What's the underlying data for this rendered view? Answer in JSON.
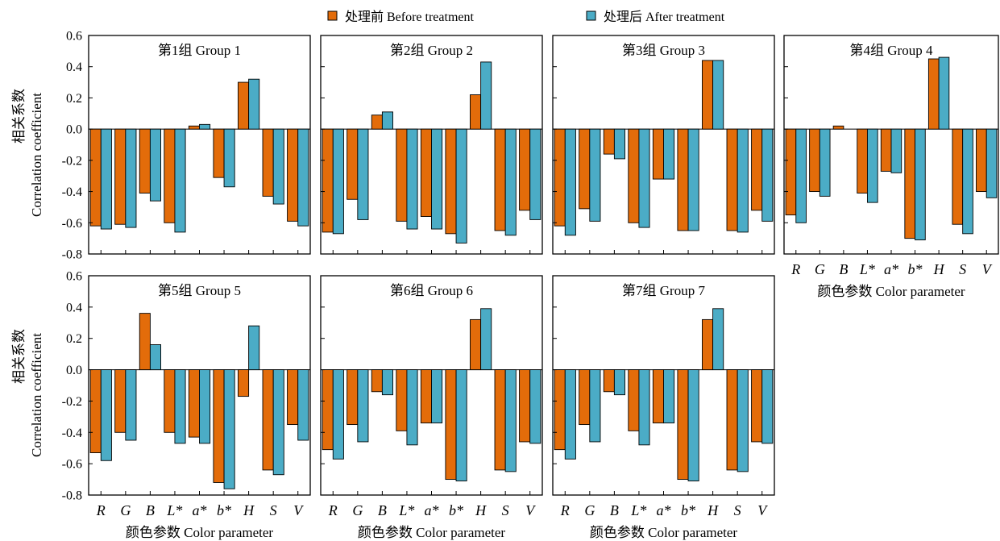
{
  "legend": {
    "placement": "top-center",
    "entries": [
      {
        "label": "处理前 Before treatment",
        "color": "#E36C0A"
      },
      {
        "label": "处理后 After treatment",
        "color": "#4BACC6"
      }
    ]
  },
  "chart_data": [
    {
      "type": "bar",
      "title": "第1组 Group 1",
      "categories": [
        "R",
        "G",
        "B",
        "L*",
        "a*",
        "b*",
        "H",
        "S",
        "V"
      ],
      "series": [
        {
          "name": "处理前 Before treatment",
          "values": [
            -0.62,
            -0.61,
            -0.41,
            -0.6,
            0.02,
            -0.31,
            0.3,
            -0.43,
            -0.59
          ]
        },
        {
          "name": "处理后 After treatment",
          "values": [
            -0.64,
            -0.63,
            -0.46,
            -0.66,
            0.03,
            -0.37,
            0.32,
            -0.48,
            -0.62
          ]
        }
      ],
      "ylim": [
        -0.8,
        0.6
      ],
      "yticks": [
        0.6,
        0.4,
        0.2,
        0.0,
        -0.2,
        -0.4,
        -0.6,
        -0.8
      ],
      "ytick_labels": [
        "0.6",
        "0.4",
        "0.2",
        "0.0",
        "-0.2",
        "-0.4",
        "-0.6",
        "-0.8"
      ],
      "ylabel": [
        "相关系数",
        "Correlation coefficient"
      ],
      "show_xtick_labels": false,
      "grid": false
    },
    {
      "type": "bar",
      "title": "第2组 Group 2",
      "categories": [
        "R",
        "G",
        "B",
        "L*",
        "a*",
        "b*",
        "H",
        "S",
        "V"
      ],
      "series": [
        {
          "name": "处理前 Before treatment",
          "values": [
            -0.66,
            -0.45,
            0.09,
            -0.59,
            -0.56,
            -0.67,
            0.22,
            -0.65,
            -0.52
          ]
        },
        {
          "name": "处理后 After treatment",
          "values": [
            -0.67,
            -0.58,
            0.11,
            -0.64,
            -0.64,
            -0.73,
            0.43,
            -0.68,
            -0.58
          ]
        }
      ],
      "ylim": [
        -0.8,
        0.6
      ],
      "yticks": [
        0.6,
        0.4,
        0.2,
        0.0,
        -0.2,
        -0.4,
        -0.6,
        -0.8
      ],
      "show_xtick_labels": false,
      "grid": false
    },
    {
      "type": "bar",
      "title": "第3组 Group 3",
      "categories": [
        "R",
        "G",
        "B",
        "L*",
        "a*",
        "b*",
        "H",
        "S",
        "V"
      ],
      "series": [
        {
          "name": "处理前 Before treatment",
          "values": [
            -0.62,
            -0.51,
            -0.16,
            -0.6,
            -0.32,
            -0.65,
            0.44,
            -0.65,
            -0.52
          ]
        },
        {
          "name": "处理后 After treatment",
          "values": [
            -0.68,
            -0.59,
            -0.19,
            -0.63,
            -0.32,
            -0.65,
            0.44,
            -0.66,
            -0.59
          ]
        }
      ],
      "ylim": [
        -0.8,
        0.6
      ],
      "yticks": [
        0.6,
        0.4,
        0.2,
        0.0,
        -0.2,
        -0.4,
        -0.6,
        -0.8
      ],
      "show_xtick_labels": false,
      "grid": false
    },
    {
      "type": "bar",
      "title": "第4组 Group 4",
      "categories": [
        "R",
        "G",
        "B",
        "L*",
        "a*",
        "b*",
        "H",
        "S",
        "V"
      ],
      "series": [
        {
          "name": "处理前 Before treatment",
          "values": [
            -0.55,
            -0.4,
            0.02,
            -0.41,
            -0.27,
            -0.7,
            0.45,
            -0.61,
            -0.4
          ]
        },
        {
          "name": "处理后 After treatment",
          "values": [
            -0.6,
            -0.43,
            0.0,
            -0.47,
            -0.28,
            -0.71,
            0.46,
            -0.67,
            -0.44
          ]
        }
      ],
      "ylim": [
        -0.8,
        0.6
      ],
      "yticks": [
        0.6,
        0.4,
        0.2,
        0.0,
        -0.2,
        -0.4,
        -0.6,
        -0.8
      ],
      "xlabel": "颜色参数 Color parameter",
      "show_xtick_labels": true,
      "grid": false
    },
    {
      "type": "bar",
      "title": "第5组 Group 5",
      "categories": [
        "R",
        "G",
        "B",
        "L*",
        "a*",
        "b*",
        "H",
        "S",
        "V"
      ],
      "series": [
        {
          "name": "处理前 Before treatment",
          "values": [
            -0.53,
            -0.4,
            0.36,
            -0.4,
            -0.43,
            -0.72,
            -0.17,
            -0.64,
            -0.35
          ]
        },
        {
          "name": "处理后 After treatment",
          "values": [
            -0.58,
            -0.45,
            0.16,
            -0.47,
            -0.47,
            -0.76,
            0.28,
            -0.67,
            -0.45
          ]
        }
      ],
      "ylim": [
        -0.8,
        0.6
      ],
      "yticks": [
        0.6,
        0.4,
        0.2,
        0.0,
        -0.2,
        -0.4,
        -0.6,
        -0.8
      ],
      "ytick_labels": [
        "0.6",
        "0.4",
        "0.2",
        "0.0",
        "-0.2",
        "-0.4",
        "-0.6",
        "-0.8"
      ],
      "ylabel": [
        "相关系数",
        "Correlation coefficient"
      ],
      "xlabel": "颜色参数 Color parameter",
      "show_xtick_labels": true,
      "grid": false
    },
    {
      "type": "bar",
      "title": "第6组 Group 6",
      "categories": [
        "R",
        "G",
        "B",
        "L*",
        "a*",
        "b*",
        "H",
        "S",
        "V"
      ],
      "series": [
        {
          "name": "处理前 Before treatment",
          "values": [
            -0.51,
            -0.35,
            -0.14,
            -0.39,
            -0.34,
            -0.7,
            0.32,
            -0.64,
            -0.46
          ]
        },
        {
          "name": "处理后 After treatment",
          "values": [
            -0.57,
            -0.46,
            -0.16,
            -0.48,
            -0.34,
            -0.71,
            0.39,
            -0.65,
            -0.47
          ]
        }
      ],
      "ylim": [
        -0.8,
        0.6
      ],
      "yticks": [
        0.6,
        0.4,
        0.2,
        0.0,
        -0.2,
        -0.4,
        -0.6,
        -0.8
      ],
      "xlabel": "颜色参数 Color parameter",
      "show_xtick_labels": true,
      "grid": false
    },
    {
      "type": "bar",
      "title": "第7组 Group 7",
      "categories": [
        "R",
        "G",
        "B",
        "L*",
        "a*",
        "b*",
        "H",
        "S",
        "V"
      ],
      "series": [
        {
          "name": "处理前 Before treatment",
          "values": [
            -0.51,
            -0.35,
            -0.14,
            -0.39,
            -0.34,
            -0.7,
            0.32,
            -0.64,
            -0.46
          ]
        },
        {
          "name": "处理后 After treatment",
          "values": [
            -0.57,
            -0.46,
            -0.16,
            -0.48,
            -0.34,
            -0.71,
            0.39,
            -0.65,
            -0.47
          ]
        }
      ],
      "ylim": [
        -0.8,
        0.6
      ],
      "yticks": [
        0.6,
        0.4,
        0.2,
        0.0,
        -0.2,
        -0.4,
        -0.6,
        -0.8
      ],
      "xlabel": "颜色参数 Color parameter",
      "show_xtick_labels": true,
      "grid": false
    }
  ]
}
